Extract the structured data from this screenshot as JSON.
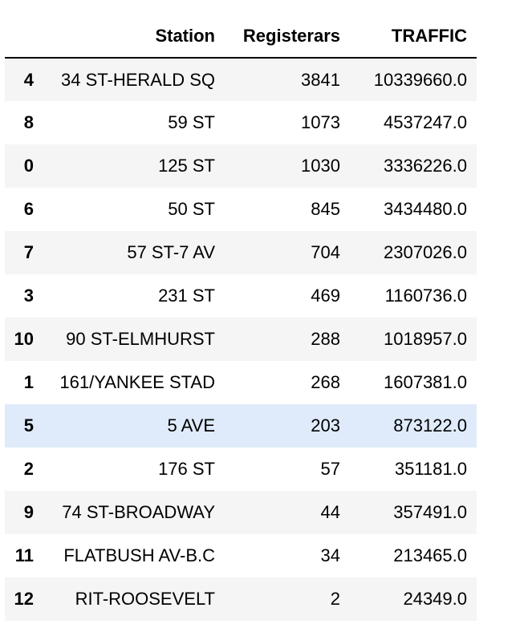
{
  "table": {
    "index_header": "",
    "columns": [
      "Station",
      "Registerars",
      "TRAFFIC"
    ],
    "rows": [
      {
        "index": "4",
        "station": "34 ST-HERALD SQ",
        "registerars": "3841",
        "traffic": "10339660.0"
      },
      {
        "index": "8",
        "station": "59 ST",
        "registerars": "1073",
        "traffic": "4537247.0"
      },
      {
        "index": "0",
        "station": "125 ST",
        "registerars": "1030",
        "traffic": "3336226.0"
      },
      {
        "index": "6",
        "station": "50 ST",
        "registerars": "845",
        "traffic": "3434480.0"
      },
      {
        "index": "7",
        "station": "57 ST-7 AV",
        "registerars": "704",
        "traffic": "2307026.0"
      },
      {
        "index": "3",
        "station": "231 ST",
        "registerars": "469",
        "traffic": "1160736.0"
      },
      {
        "index": "10",
        "station": "90 ST-ELMHURST",
        "registerars": "288",
        "traffic": "1018957.0"
      },
      {
        "index": "1",
        "station": "161/YANKEE STAD",
        "registerars": "268",
        "traffic": "1607381.0"
      },
      {
        "index": "5",
        "station": "5 AVE",
        "registerars": "203",
        "traffic": "873122.0"
      },
      {
        "index": "2",
        "station": "176 ST",
        "registerars": "57",
        "traffic": "351181.0"
      },
      {
        "index": "9",
        "station": "74 ST-BROADWAY",
        "registerars": "44",
        "traffic": "357491.0"
      },
      {
        "index": "11",
        "station": "FLATBUSH AV-B.C",
        "registerars": "34",
        "traffic": "213465.0"
      },
      {
        "index": "12",
        "station": "RIT-ROOSEVELT",
        "registerars": "2",
        "traffic": "24349.0"
      }
    ],
    "highlighted_row": 8
  },
  "colors": {
    "header_border": "#000000",
    "stripe": "#f5f5f5",
    "hover_highlight": "#dfebfa"
  }
}
